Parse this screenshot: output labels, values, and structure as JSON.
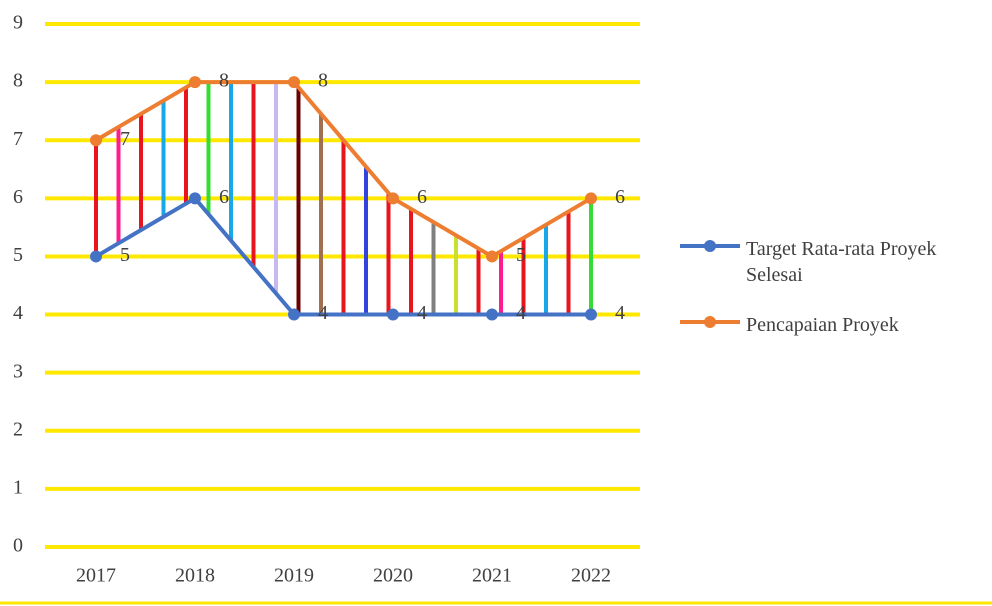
{
  "chart_data": {
    "type": "line",
    "categories": [
      "2017",
      "2018",
      "2019",
      "2020",
      "2021",
      "2022"
    ],
    "series": [
      {
        "name": "Target Rata-rata Proyek Selesai",
        "color": "#4472c4",
        "values": [
          5,
          6,
          4,
          4,
          4,
          4
        ]
      },
      {
        "name": "Pencapaian Proyek",
        "color": "#ed7d31",
        "values": [
          7,
          8,
          8,
          6,
          5,
          6
        ]
      }
    ],
    "ylim": [
      0,
      9
    ],
    "yticks": [
      0,
      1,
      2,
      3,
      4,
      5,
      6,
      7,
      8,
      9
    ],
    "grid": true,
    "grid_color": "#ffe800",
    "legend": "right"
  }
}
